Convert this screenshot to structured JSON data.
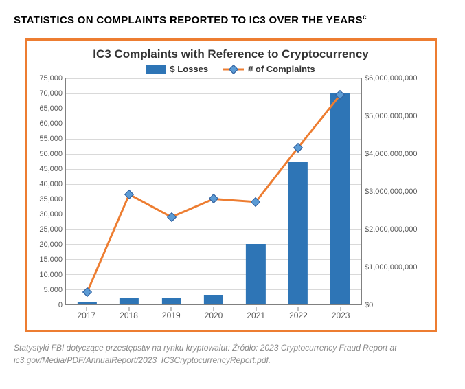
{
  "page_heading": "STATISTICS ON COMPLAINTS REPORTED TO IC3 OVER THE YEARS",
  "page_heading_sup": "c",
  "chart": {
    "type": "bar+line-dual-axis",
    "title": "IC3 Complaints with Reference to Cryptocurrency",
    "legend": {
      "bars_label": "$ Losses",
      "line_label": "# of Complaints"
    },
    "categories": [
      "2017",
      "2018",
      "2019",
      "2020",
      "2021",
      "2022",
      "2023"
    ],
    "left_axis": {
      "label_series": "# of Complaints",
      "min": 0,
      "max": 75000,
      "tick_step": 5000,
      "ticks": [
        0,
        5000,
        10000,
        15000,
        20000,
        25000,
        30000,
        35000,
        40000,
        45000,
        50000,
        55000,
        60000,
        65000,
        70000,
        75000
      ],
      "tick_labels": [
        "0",
        "5,000",
        "10,000",
        "15,000",
        "20,000",
        "25,000",
        "30,000",
        "35,000",
        "40,000",
        "45,000",
        "50,000",
        "55,000",
        "60,000",
        "65,000",
        "70,000",
        "75,000"
      ]
    },
    "right_axis": {
      "label_series": "$ Losses",
      "min": 0,
      "max": 6000000000,
      "tick_step": 1000000000,
      "ticks": [
        0,
        1000000000,
        2000000000,
        3000000000,
        4000000000,
        5000000000,
        6000000000
      ],
      "tick_labels": [
        "$0",
        "$1,000,000,000",
        "$2,000,000,000",
        "$3,000,000,000",
        "$4,000,000,000",
        "$5,000,000,000",
        "$6,000,000,000"
      ]
    },
    "bars": {
      "name": "$ Losses",
      "axis": "right",
      "color": "#2e75b6",
      "width_frac": 0.46,
      "values": [
        60000000,
        180000000,
        160000000,
        250000000,
        1600000000,
        3800000000,
        5600000000
      ]
    },
    "line": {
      "name": "# of Complaints",
      "axis": "left",
      "color": "#ed7d31",
      "line_width": 3,
      "marker": {
        "shape": "diamond",
        "fill": "#5b9bd5",
        "border": "#2e5c9a",
        "size": 10
      },
      "values": [
        4000,
        36500,
        29000,
        35000,
        34000,
        52000,
        69500
      ]
    },
    "grid_color": "#d9d9d9",
    "axis_color": "#808080",
    "background_color": "#ffffff",
    "border_color": "#ed7d31",
    "title_fontsize": 17,
    "axis_fontsize": 11
  },
  "caption_line1": "Statystyki FBI dotyczące przestępstw na rynku kryptowalut: Źródło: 2023 Cryptocurrency Fraud Report at",
  "caption_line2": "ic3.gov/Media/PDF/AnnualReport/2023_IC3CryptocurrencyReport.pdf."
}
